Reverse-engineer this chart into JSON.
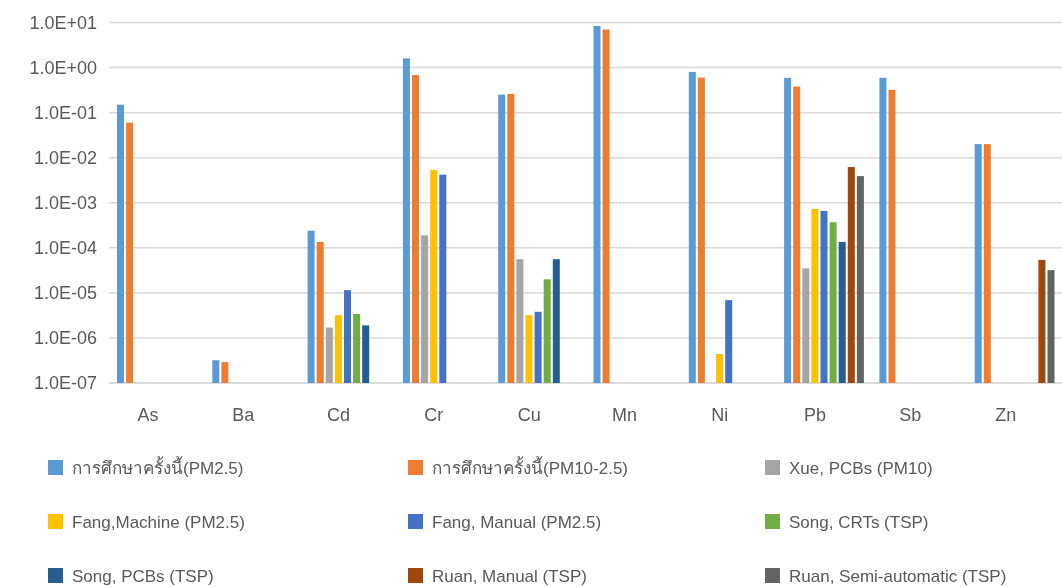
{
  "chart_data": {
    "type": "bar",
    "log": "y",
    "grid": "y",
    "legend": "bottom",
    "categories": [
      "As",
      "Ba",
      "Cd",
      "Cr",
      "Cu",
      "Mn",
      "Ni",
      "Pb",
      "Sb",
      "Zn"
    ],
    "ylim": [
      1e-07,
      10
    ],
    "yticks": [
      {
        "value": 1e-07,
        "label": "1.0E-07"
      },
      {
        "value": 1e-06,
        "label": "1.0E-06"
      },
      {
        "value": 1e-05,
        "label": "1.0E-05"
      },
      {
        "value": 0.0001,
        "label": "1.0E-04"
      },
      {
        "value": 0.001,
        "label": "1.0E-03"
      },
      {
        "value": 0.01,
        "label": "1.0E-02"
      },
      {
        "value": 0.1,
        "label": "1.0E-01"
      },
      {
        "value": 1,
        "label": "1.0E+00"
      },
      {
        "value": 10,
        "label": "1.0E+01"
      }
    ],
    "series": [
      {
        "name": "การศึกษาครั้งนี้(PM2.5)",
        "color": "#5b9bd5",
        "values": [
          0.15,
          3.2e-07,
          0.00024,
          1.6,
          0.25,
          8.4,
          0.8,
          0.59,
          0.59,
          0.02
        ]
      },
      {
        "name": "การศึกษาครั้งนี้(PM10-2.5)",
        "color": "#ed7d31",
        "values": [
          0.06,
          2.9e-07,
          0.000135,
          0.68,
          0.26,
          7.0,
          0.6,
          0.38,
          0.32,
          0.02
        ]
      },
      {
        "name": "Xue, PCBs (PM10)",
        "color": "#a5a5a5",
        "values": [
          null,
          null,
          1.7e-06,
          0.00019,
          5.6e-05,
          null,
          null,
          3.5e-05,
          null,
          null
        ]
      },
      {
        "name": "Fang,Machine (PM2.5)",
        "color": "#ffc000",
        "values": [
          null,
          null,
          3.2e-06,
          0.0053,
          3.2e-06,
          null,
          4.4e-07,
          0.00073,
          null,
          null
        ]
      },
      {
        "name": "Fang, Manual (PM2.5)",
        "color": "#4472c4",
        "values": [
          null,
          null,
          1.15e-05,
          0.0042,
          3.8e-06,
          null,
          6.9e-06,
          0.00066,
          null,
          null
        ]
      },
      {
        "name": "Song, CRTs (TSP)",
        "color": "#70ad47",
        "values": [
          null,
          null,
          3.4e-06,
          null,
          2e-05,
          null,
          null,
          0.00037,
          null,
          null
        ]
      },
      {
        "name": "Song, PCBs (TSP)",
        "color": "#255e91",
        "values": [
          null,
          null,
          1.9e-06,
          null,
          5.6e-05,
          null,
          null,
          0.000135,
          null,
          null
        ]
      },
      {
        "name": "Ruan, Manual (TSP)",
        "color": "#9e480e",
        "values": [
          null,
          null,
          null,
          null,
          null,
          null,
          null,
          0.0062,
          null,
          5.4e-05
        ]
      },
      {
        "name": "Ruan, Semi-automatic (TSP)",
        "color": "#636363",
        "values": [
          null,
          null,
          null,
          null,
          null,
          null,
          null,
          0.0039,
          null,
          3.2e-05
        ]
      }
    ]
  }
}
